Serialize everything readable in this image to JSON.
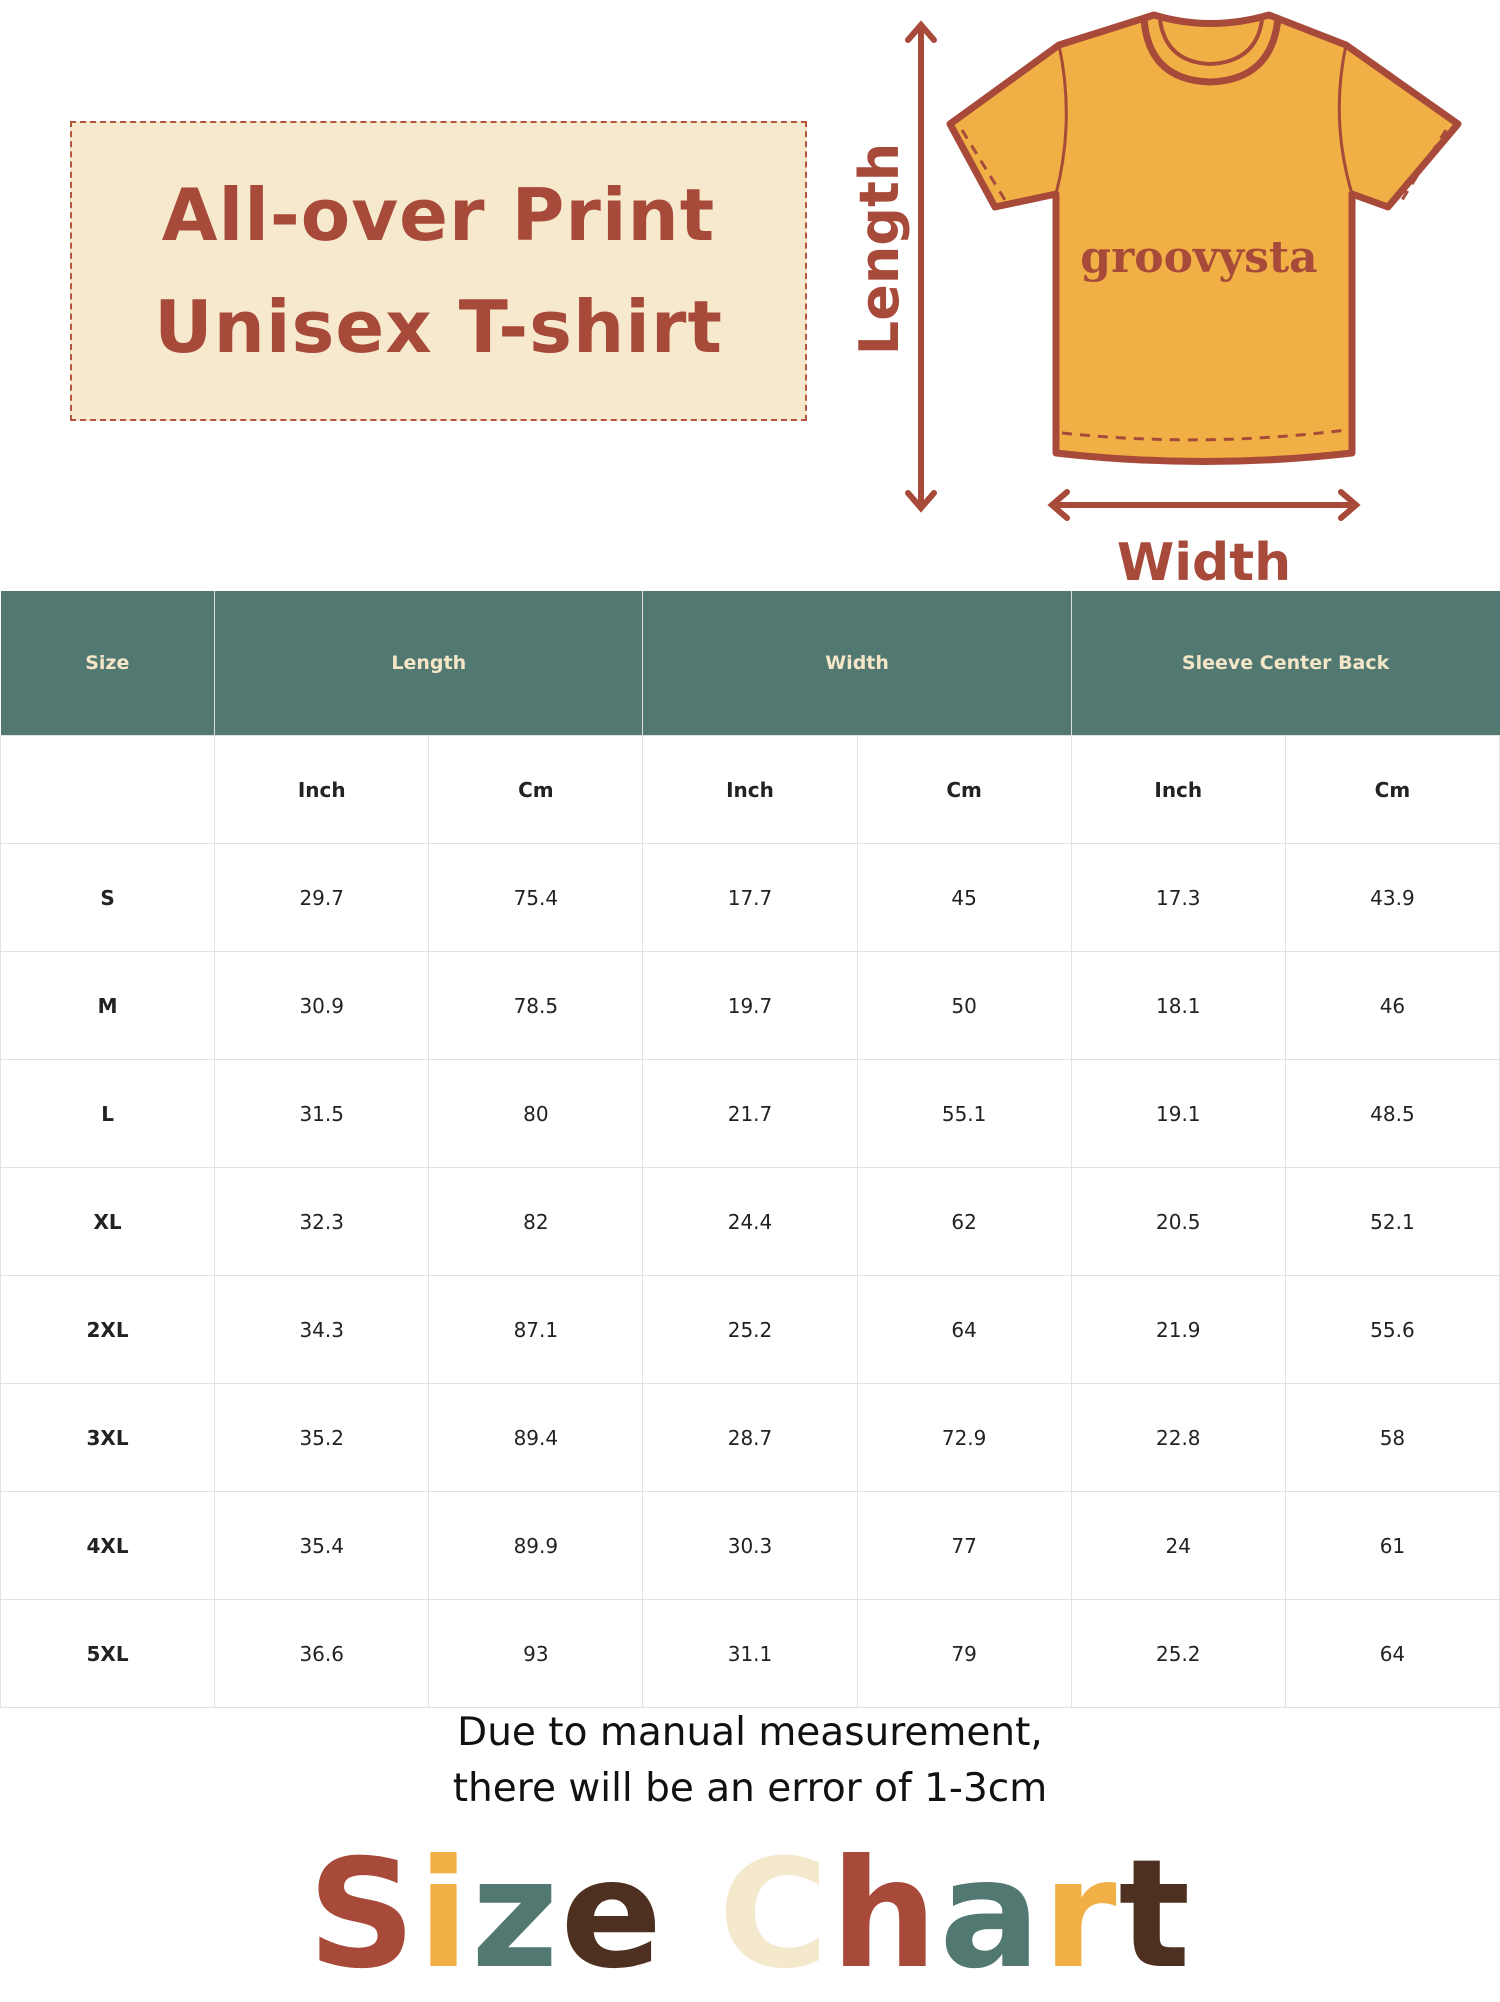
{
  "title": {
    "line1": "All-over Print",
    "line2": "Unisex T-shirt"
  },
  "diagram": {
    "length_label": "Length",
    "width_label": "Width",
    "brand": "groovysta"
  },
  "colors": {
    "brick": "#a84a3a",
    "teal": "#527872",
    "mustard": "#f0b045",
    "cream": "#f5e9cd",
    "brown": "#4d3020"
  },
  "table": {
    "headers": [
      "Size",
      "Length",
      "Width",
      "Sleeve Center Back"
    ],
    "units": [
      "Inch",
      "Cm",
      "Inch",
      "Cm",
      "Inch",
      "Cm"
    ],
    "rows": [
      [
        "S",
        "29.7",
        "75.4",
        "17.7",
        "45",
        "17.3",
        "43.9"
      ],
      [
        "M",
        "30.9",
        "78.5",
        "19.7",
        "50",
        "18.1",
        "46"
      ],
      [
        "L",
        "31.5",
        "80",
        "21.7",
        "55.1",
        "19.1",
        "48.5"
      ],
      [
        "XL",
        "32.3",
        "82",
        "24.4",
        "62",
        "20.5",
        "52.1"
      ],
      [
        "2XL",
        "34.3",
        "87.1",
        "25.2",
        "64",
        "21.9",
        "55.6"
      ],
      [
        "3XL",
        "35.2",
        "89.4",
        "28.7",
        "72.9",
        "22.8",
        "58"
      ],
      [
        "4XL",
        "35.4",
        "89.9",
        "30.3",
        "77",
        "24",
        "61"
      ],
      [
        "5XL",
        "36.6",
        "93",
        "31.1",
        "79",
        "25.2",
        "64"
      ]
    ]
  },
  "note": {
    "line1": "Due to manual measurement,",
    "line2": "there will be an error of 1-3cm"
  },
  "footer": {
    "title": "Size Chart",
    "letters": [
      "S",
      "i",
      "z",
      "e",
      " ",
      "C",
      "h",
      "a",
      "r",
      "t"
    ],
    "letter_colors": [
      "#a84a3a",
      "#f0b045",
      "#527872",
      "#4d3020",
      "#fff",
      "#f5e9cd",
      "#a84a3a",
      "#527872",
      "#f0b045",
      "#4d3020"
    ]
  }
}
